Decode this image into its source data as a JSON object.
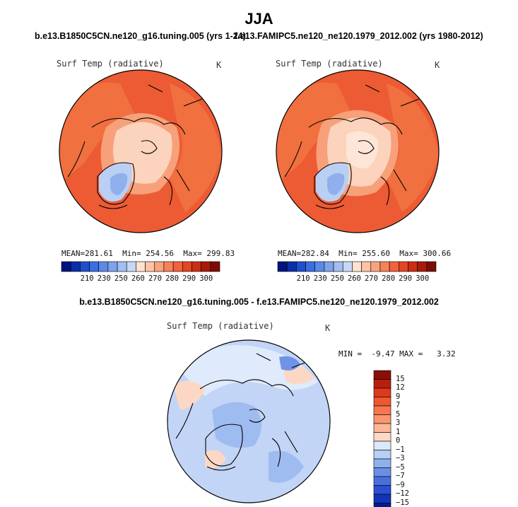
{
  "figure": {
    "title": "JJA"
  },
  "panels": {
    "left": {
      "title": "b.e13.B1850C5CN.ne120_g16.tuning.005 (yrs 1-24)",
      "variable": "Surf Temp (radiative)",
      "units": "K",
      "mean_label": "MEAN=",
      "mean": "281.61",
      "min_label": "Min=",
      "min": "254.56",
      "max_label": "Max=",
      "max": "299.83"
    },
    "right": {
      "title": "f.e13.FAMIPC5.ne120_ne120.1979_2012.002 (yrs 1980-2012)",
      "variable": "Surf Temp (radiative)",
      "units": "K",
      "mean_label": "MEAN=",
      "mean": "282.84",
      "min_label": "Min=",
      "min": "255.60",
      "max_label": "Max=",
      "max": "300.66"
    },
    "diff": {
      "title": "b.e13.B1850C5CN.ne120_g16.tuning.005 - f.e13.FAMIPC5.ne120_ne120.1979_2012.002",
      "variable": "Surf Temp (radiative)",
      "units": "K",
      "minmax_text": "MIN =  -9.47 MAX =   3.32"
    }
  },
  "colorbar_abs": {
    "tick_labels": [
      "210",
      "230",
      "250",
      "260",
      "270",
      "280",
      "290",
      "300"
    ],
    "colors": [
      "#00137f",
      "#0a2ea6",
      "#1f4fcc",
      "#3a6ee0",
      "#5a8ae6",
      "#7ea3ea",
      "#a3bef0",
      "#c7d8f5",
      "#ffe2cf",
      "#fcc3a4",
      "#f9a37c",
      "#f6825a",
      "#f1623c",
      "#e44524",
      "#cc2e14",
      "#a81a0a",
      "#7c0d04"
    ]
  },
  "colorbar_diff": {
    "tick_labels": [
      "15",
      "12",
      "9",
      "7",
      "5",
      "3",
      "1",
      "0",
      "−1",
      "−3",
      "−5",
      "−7",
      "−9",
      "−12",
      "−15"
    ],
    "colors": [
      "#8a0f06",
      "#b8200d",
      "#dc3a1d",
      "#ef5733",
      "#f7764e",
      "#fa9670",
      "#fcb797",
      "#fed8c2",
      "#dce9fb",
      "#b8d0f4",
      "#8fb0ec",
      "#6a8fe4",
      "#4a6fdc",
      "#2b4fd0",
      "#1233b8",
      "#001c8c"
    ]
  },
  "map_palette": {
    "ocean_warm": "#ec5b34",
    "land_warm": "#f0703f",
    "mid": "#f7a07a",
    "cool": "#fcd3bc",
    "pale": "#fde6d8",
    "ice": "#b9cff3",
    "ice_core": "#8fb0ec",
    "diff_base": "#c2d5f6",
    "diff_light": "#dfeafc",
    "diff_mid": "#9fbcf0",
    "diff_dark": "#6f93e6",
    "diff_warm": "#fcd8c4",
    "coast": "#000000"
  }
}
